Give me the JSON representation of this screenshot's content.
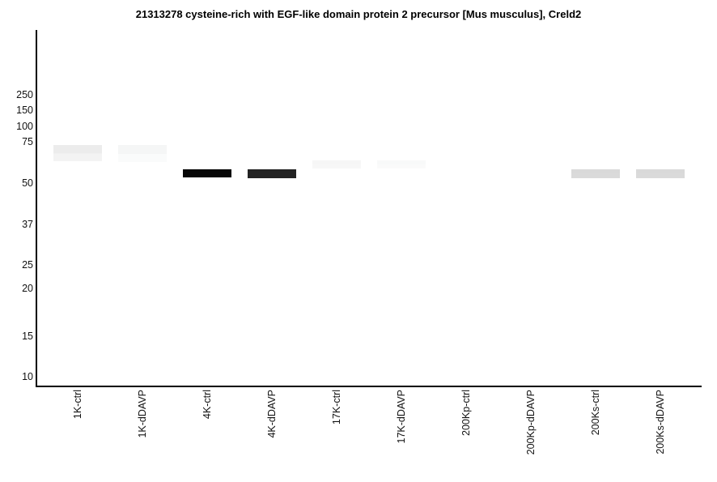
{
  "chart_data": {
    "type": "western-blot",
    "title": "21313278 cysteine-rich with EGF-like domain protein 2 precursor [Mus musculus], Creld2",
    "y_axis": {
      "unit": "kDa",
      "scale": "log",
      "tick_labels": [
        "250",
        "150",
        "100",
        "75",
        "50",
        "37",
        "25",
        "20",
        "15",
        "10"
      ]
    },
    "x_axis": {
      "lane_labels": [
        "1K-ctrl",
        "1K-dDAVP",
        "4K-ctrl",
        "4K-dDAVP",
        "17K-ctrl",
        "17K-dDAVP",
        "200Kp-ctrl",
        "200Kp-dDAVP",
        "200Ks-ctrl",
        "200Ks-dDAVP"
      ]
    },
    "legend": "none",
    "grid": false,
    "lanes": [
      {
        "label": "1K-ctrl",
        "bands": [
          {
            "kda": 67,
            "intensity": 0.08,
            "thickness_px": 20,
            "color_top": "#ececec",
            "color_bottom": "#f3f3f3"
          }
        ]
      },
      {
        "label": "1K-dDAVP",
        "bands": [
          {
            "kda": 67,
            "intensity": 0.03,
            "thickness_px": 21,
            "color_top": "#f5f6f6",
            "color_bottom": "#fafbfb"
          }
        ]
      },
      {
        "label": "4K-ctrl",
        "bands": [
          {
            "kda": 55,
            "intensity": 1.0,
            "thickness_px": 10,
            "color_top": "#070707",
            "color_bottom": "#070707"
          }
        ]
      },
      {
        "label": "4K-dDAVP",
        "bands": [
          {
            "kda": 55,
            "intensity": 0.87,
            "thickness_px": 11,
            "color_top": "#232323",
            "color_bottom": "#232323"
          }
        ]
      },
      {
        "label": "17K-ctrl",
        "bands": [
          {
            "kda": 60,
            "intensity": 0.04,
            "thickness_px": 10,
            "color_top": "#f6f6f6",
            "color_bottom": "#f7f7f7"
          }
        ]
      },
      {
        "label": "17K-dDAVP",
        "bands": [
          {
            "kda": 60,
            "intensity": 0.03,
            "thickness_px": 10,
            "color_top": "#f8f9f9",
            "color_bottom": "#fafafa"
          }
        ]
      },
      {
        "label": "200Kp-ctrl",
        "bands": []
      },
      {
        "label": "200Kp-dDAVP",
        "bands": []
      },
      {
        "label": "200Ks-ctrl",
        "bands": [
          {
            "kda": 55,
            "intensity": 0.15,
            "thickness_px": 11,
            "color_top": "#d9d9d9",
            "color_bottom": "#dadada"
          }
        ]
      },
      {
        "label": "200Ks-dDAVP",
        "bands": [
          {
            "kda": 55,
            "intensity": 0.15,
            "thickness_px": 11,
            "color_top": "#d9d9d9",
            "color_bottom": "#dadada"
          }
        ]
      }
    ]
  }
}
